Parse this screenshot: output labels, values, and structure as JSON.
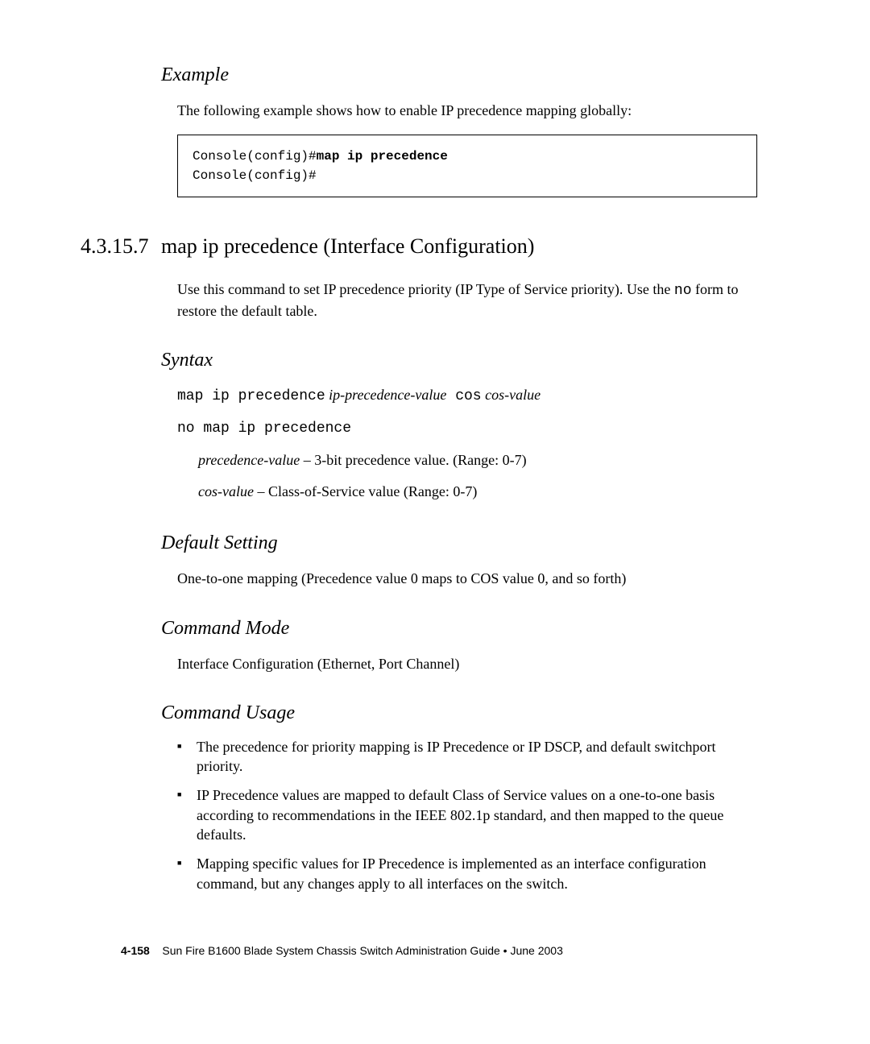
{
  "example": {
    "heading": "Example",
    "intro": "The following example shows how to enable IP precedence mapping globally:",
    "code_prefix1": "Console(config)#",
    "code_bold": "map ip precedence",
    "code_line2": "Console(config)#"
  },
  "section": {
    "number": "4.3.15.7",
    "title": "map ip precedence (Interface Configuration)",
    "intro1": "Use this command to set IP precedence priority (IP Type of Service priority). Use the ",
    "intro_mono": "no",
    "intro2": " form to restore the default table."
  },
  "syntax": {
    "heading": "Syntax",
    "line1_mono1": "map ip precedence",
    "line1_italic1": " ip-precedence-value",
    "line1_mono2": " cos",
    "line1_italic2": " cos-value",
    "line2_mono": "no map ip precedence",
    "param1_italic": "precedence-value",
    "param1_text": " – 3-bit precedence value. (Range: 0-7)",
    "param2_italic": "cos-value",
    "param2_text": " – Class-of-Service value (Range: 0-7)"
  },
  "default_setting": {
    "heading": "Default Setting",
    "text": "One-to-one mapping (Precedence value 0 maps to COS value 0, and so forth)"
  },
  "command_mode": {
    "heading": "Command Mode",
    "text": "Interface Configuration (Ethernet, Port Channel)"
  },
  "command_usage": {
    "heading": "Command Usage",
    "bullet1": "The precedence for priority mapping is IP Precedence or IP DSCP, and default switchport priority.",
    "bullet2": "IP Precedence values are mapped to default Class of Service values on a one-to-one basis according to recommendations in the IEEE 802.1p standard, and then mapped to the queue defaults.",
    "bullet3": "Mapping specific values for IP Precedence is implemented as an interface configuration command, but any changes apply to all interfaces on the switch."
  },
  "footer": {
    "page": "4-158",
    "text": "Sun Fire B1600 Blade System Chassis Switch Administration Guide • June 2003"
  }
}
